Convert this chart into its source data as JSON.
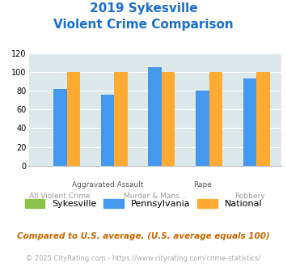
{
  "title_line1": "2019 Sykesville",
  "title_line2": "Violent Crime Comparison",
  "sykesville_values": [
    0,
    0,
    0,
    0,
    0
  ],
  "pennsylvania_values": [
    82,
    76,
    105,
    80,
    93
  ],
  "national_values": [
    100,
    100,
    100,
    100,
    100
  ],
  "sykesville_color": "#8bc34a",
  "pennsylvania_color": "#4499ee",
  "national_color": "#ffaa33",
  "ylim": [
    0,
    120
  ],
  "yticks": [
    0,
    20,
    40,
    60,
    80,
    100,
    120
  ],
  "plot_bg": "#dde8ea",
  "fig_bg": "#ffffff",
  "title_color": "#1a6fcc",
  "legend_labels": [
    "Sykesville",
    "Pennsylvania",
    "National"
  ],
  "x_labels_top": [
    "",
    "Aggravated Assault",
    "",
    "Rape",
    ""
  ],
  "x_labels_bot": [
    "All Violent Crime",
    "",
    "Murder & Mans...",
    "",
    "Robbery"
  ],
  "footnote1": "Compared to U.S. average. (U.S. average equals 100)",
  "footnote2": "© 2025 CityRating.com - https://www.cityrating.com/crime-statistics/",
  "footnote1_color": "#cc6600",
  "footnote2_color": "#aaaaaa"
}
